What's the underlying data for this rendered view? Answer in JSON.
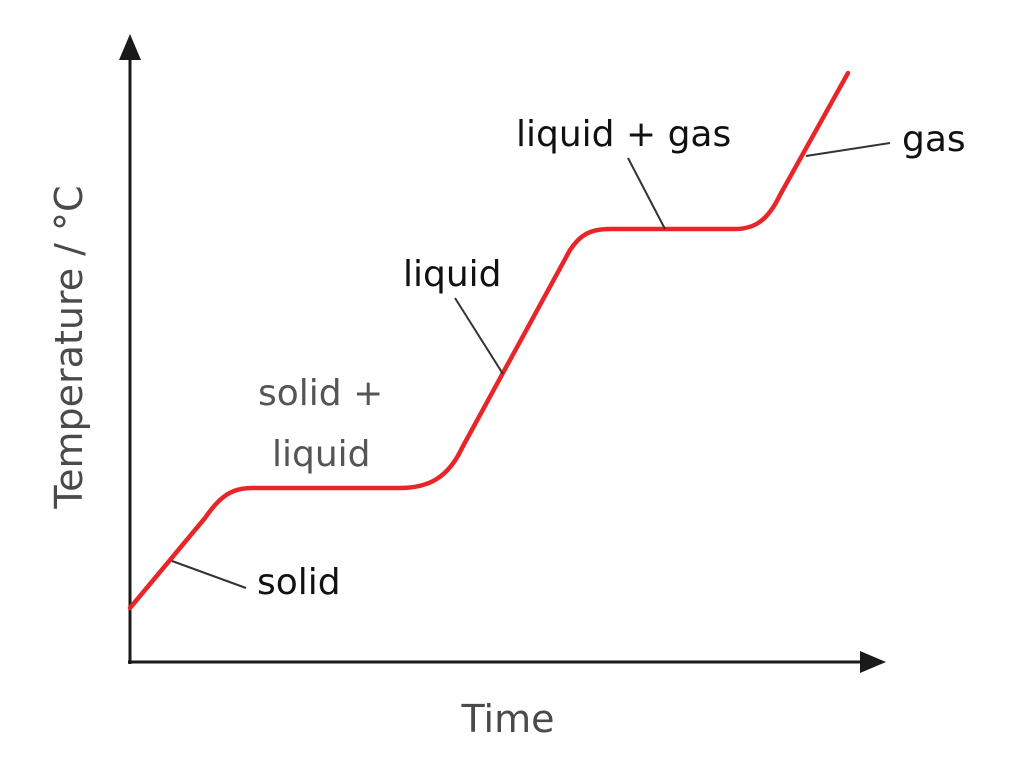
{
  "axes": {
    "x_label": "Time",
    "y_label": "Temperature / °C"
  },
  "labels": {
    "solid": "solid",
    "solid_liquid_line1": "solid +",
    "solid_liquid_line2": "liquid",
    "liquid": "liquid",
    "liquid_gas": "liquid + gas",
    "gas": "gas"
  },
  "colors": {
    "curve": "#e8262a",
    "axis": "#1a1a1a",
    "leader": "#333333",
    "axis_text": "#4a4a4a",
    "label_text": "#111111",
    "muted_label_text": "#555555"
  }
}
